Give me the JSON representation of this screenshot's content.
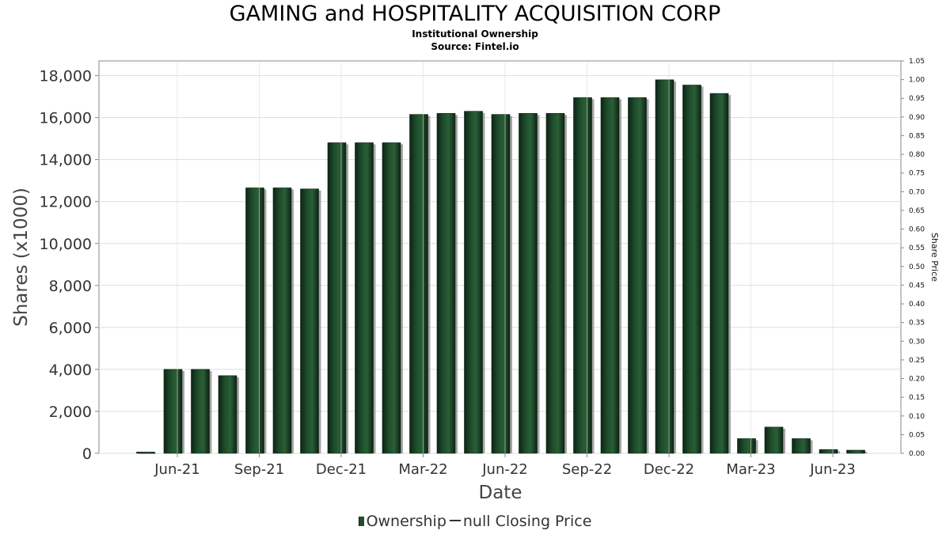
{
  "header": {
    "title": "GAMING and HOSPITALITY ACQUISITION CORP",
    "subtitle": "Institutional Ownership",
    "source": "Source: Fintel.io"
  },
  "legend": {
    "ownership": "Ownership",
    "price": "null Closing Price"
  },
  "colors": {
    "bar": "#1e4d2b",
    "bar_dark": "#0d2414",
    "bar_shadow": "#8a8a8a",
    "grid": "#dddddd"
  },
  "chart_data": {
    "type": "bar",
    "xlabel": "Date",
    "ylabel": "Shares (x1000)",
    "y2label": "Share Price",
    "ylim": [
      0,
      18700
    ],
    "y2lim": [
      0,
      1.05
    ],
    "yticks": [
      0,
      2000,
      4000,
      6000,
      8000,
      10000,
      12000,
      14000,
      16000,
      18000
    ],
    "ytick_labels": [
      "0",
      "2,000",
      "4,000",
      "6,000",
      "8,000",
      "10,000",
      "12,000",
      "14,000",
      "16,000",
      "18,000"
    ],
    "y2ticks": [
      "0.00",
      "0.05",
      "0.10",
      "0.15",
      "0.20",
      "0.25",
      "0.30",
      "0.35",
      "0.40",
      "0.45",
      "0.50",
      "0.55",
      "0.60",
      "0.65",
      "0.70",
      "0.75",
      "0.80",
      "0.85",
      "0.90",
      "0.95",
      "1.00",
      "1.05"
    ],
    "xtick_labels": [
      "Jun-21",
      "Sep-21",
      "Dec-21",
      "Mar-22",
      "Jun-22",
      "Sep-22",
      "Dec-22",
      "Mar-23",
      "Jun-23"
    ],
    "grid": true,
    "legend_position": "bottom",
    "series": [
      {
        "name": "Ownership",
        "values": [
          60,
          4000,
          4000,
          3700,
          12650,
          12650,
          12600,
          14800,
          14800,
          14800,
          16150,
          16200,
          16300,
          16150,
          16200,
          16200,
          16950,
          16950,
          16950,
          17800,
          17550,
          17150,
          700,
          1250,
          700,
          180,
          150
        ]
      }
    ]
  }
}
